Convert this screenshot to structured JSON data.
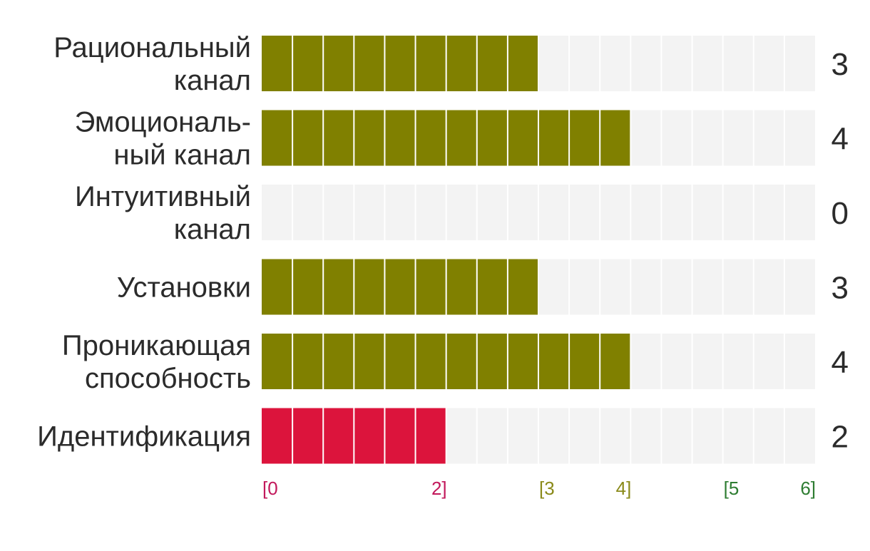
{
  "chart_data": {
    "type": "bar",
    "orientation": "horizontal",
    "categories": [
      [
        "Рациональный",
        "канал"
      ],
      [
        "Эмоциональ-",
        "ный канал"
      ],
      [
        "Интуитивный",
        "канал"
      ],
      [
        "Установки"
      ],
      [
        "Проникающая",
        "способность"
      ],
      [
        "Идентификация"
      ]
    ],
    "values": [
      3,
      4,
      0,
      3,
      4,
      2
    ],
    "value_labels": [
      "3",
      "4",
      "0",
      "3",
      "4",
      "2"
    ],
    "xlim": [
      0,
      6
    ],
    "segments_per_unit": 3,
    "grid": false,
    "legend": "none",
    "zones": [
      {
        "range": [
          0,
          2
        ],
        "start_label": "[0",
        "end_label": "2]",
        "color": "#c2185b"
      },
      {
        "range": [
          3,
          4
        ],
        "start_label": "[3",
        "end_label": "4]",
        "color": "#8a8a1a"
      },
      {
        "range": [
          5,
          6
        ],
        "start_label": "[5",
        "end_label": "6]",
        "color": "#2e7d32"
      }
    ],
    "colors": {
      "bar_fill": "#808000",
      "bar_low": "#dc143c",
      "track": "#f3f3f3",
      "segment_line": "#ffffff"
    }
  }
}
